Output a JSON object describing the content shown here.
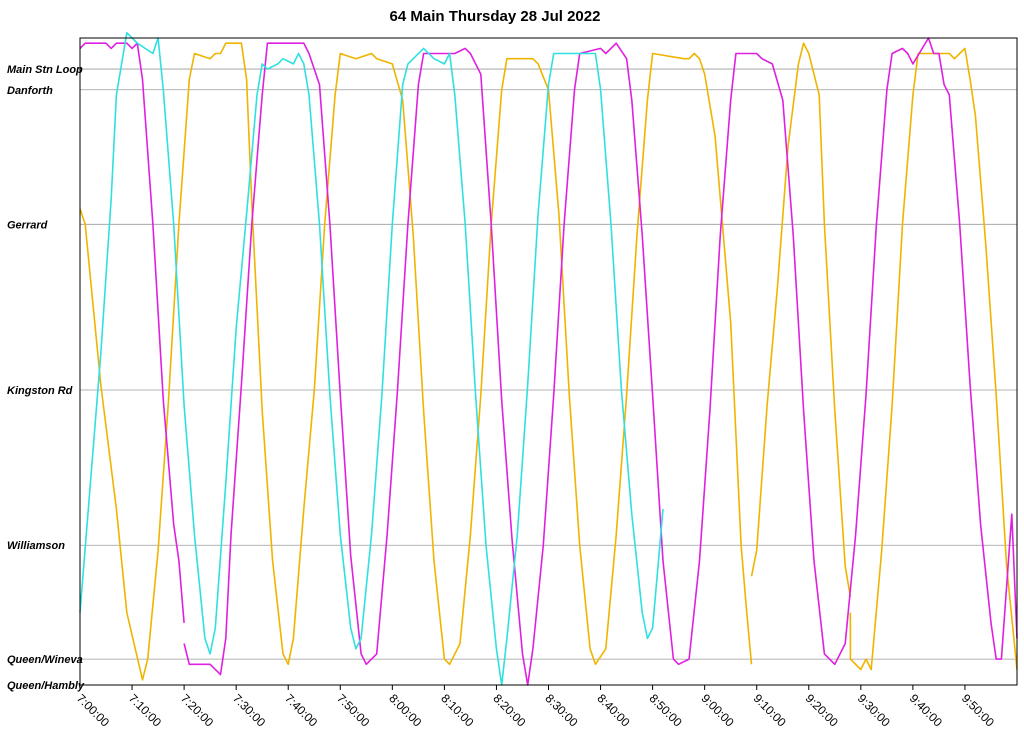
{
  "chart_data": {
    "type": "line",
    "title": "64 Main Thursday 28 Jul 2022",
    "xlabel": "",
    "ylabel": "",
    "x_ticks": [
      "7:00:00",
      "7:10:00",
      "7:20:00",
      "7:30:00",
      "7:40:00",
      "7:50:00",
      "8:00:00",
      "8:10:00",
      "8:20:00",
      "8:30:00",
      "8:40:00",
      "8:50:00",
      "9:00:00",
      "9:10:00",
      "9:20:00",
      "9:30:00",
      "9:40:00",
      "9:50:00"
    ],
    "xlim_minutes": [
      0,
      180
    ],
    "stops": [
      {
        "name": "Main Stn Loop",
        "km": 0.0
      },
      {
        "name": "Danforth",
        "km": 0.4
      },
      {
        "name": "Gerrard",
        "km": 3.0
      },
      {
        "name": "Kingston Rd",
        "km": 6.2
      },
      {
        "name": "Williamson",
        "km": 9.2
      },
      {
        "name": "Queen/Wineva",
        "km": 11.4
      },
      {
        "name": "Queen/Hambly",
        "km": 11.9
      }
    ],
    "ylim_km": [
      -0.6,
      11.9
    ],
    "series": [
      {
        "color": "#F0B400",
        "segments": [
          [
            [
              0,
              2.7
            ],
            [
              1,
              3.0
            ],
            [
              4,
              6.1
            ],
            [
              7,
              8.5
            ],
            [
              9,
              10.5
            ],
            [
              12,
              11.8
            ],
            [
              13,
              11.4
            ],
            [
              15,
              9.3
            ],
            [
              17,
              6.4
            ],
            [
              19,
              3.0
            ],
            [
              21,
              0.2
            ],
            [
              22,
              -0.3
            ],
            [
              25,
              -0.2
            ],
            [
              26,
              -0.3
            ],
            [
              27,
              -0.3
            ],
            [
              28,
              -0.5
            ],
            [
              31,
              -0.5
            ],
            [
              32,
              0.2
            ],
            [
              33,
              2.6
            ],
            [
              35,
              6.6
            ],
            [
              37,
              9.5
            ],
            [
              39,
              11.3
            ],
            [
              40,
              11.5
            ],
            [
              41,
              11.0
            ],
            [
              43,
              8.5
            ],
            [
              45,
              6.2
            ],
            [
              47,
              3.0
            ],
            [
              49,
              0.5
            ],
            [
              50,
              -0.3
            ],
            [
              53,
              -0.2
            ],
            [
              56,
              -0.3
            ],
            [
              57,
              -0.2
            ],
            [
              60,
              -0.1
            ],
            [
              62,
              0.6
            ],
            [
              64,
              3.2
            ],
            [
              66,
              6.6
            ],
            [
              68,
              9.5
            ],
            [
              70,
              11.4
            ],
            [
              71,
              11.5
            ],
            [
              73,
              11.1
            ],
            [
              75,
              9.0
            ],
            [
              77,
              6.3
            ],
            [
              79,
              3.0
            ],
            [
              81,
              0.4
            ],
            [
              82,
              -0.2
            ],
            [
              86,
              -0.2
            ],
            [
              87,
              -0.2
            ],
            [
              88,
              -0.1
            ],
            [
              90,
              0.4
            ],
            [
              92,
              2.8
            ],
            [
              94,
              6.3
            ],
            [
              96,
              9.2
            ],
            [
              98,
              11.2
            ],
            [
              99,
              11.5
            ],
            [
              101,
              11.2
            ],
            [
              103,
              9.0
            ],
            [
              105,
              6.3
            ],
            [
              107,
              3.2
            ],
            [
              109,
              0.6
            ],
            [
              110,
              -0.3
            ],
            [
              116,
              -0.2
            ],
            [
              117,
              -0.2
            ],
            [
              118,
              -0.3
            ],
            [
              119,
              -0.2
            ],
            [
              120,
              0.1
            ],
            [
              122,
              1.3
            ],
            [
              125,
              4.9
            ],
            [
              127,
              9.2
            ],
            [
              128,
              10.4
            ],
            [
              129,
              11.5
            ]
          ],
          [
            [
              129,
              9.8
            ],
            [
              130,
              9.3
            ],
            [
              132,
              6.5
            ],
            [
              134,
              4.2
            ],
            [
              136,
              1.5
            ],
            [
              138,
              -0.1
            ],
            [
              139,
              -0.5
            ],
            [
              140,
              -0.3
            ],
            [
              142,
              0.5
            ],
            [
              143,
              3.0
            ],
            [
              145,
              6.6
            ],
            [
              147,
              9.6
            ],
            [
              148,
              10.2
            ]
          ],
          [
            [
              148,
              10.5
            ],
            [
              148,
              11.4
            ],
            [
              150,
              11.6
            ],
            [
              151,
              11.4
            ],
            [
              152,
              11.6
            ],
            [
              154,
              9.3
            ],
            [
              156,
              6.5
            ],
            [
              158,
              3.0
            ],
            [
              160,
              0.5
            ],
            [
              161,
              -0.3
            ],
            [
              167,
              -0.3
            ],
            [
              168,
              -0.2
            ],
            [
              169,
              -0.3
            ],
            [
              170,
              -0.4
            ],
            [
              171,
              0.2
            ],
            [
              172,
              0.9
            ],
            [
              174,
              3.4
            ],
            [
              176,
              6.3
            ],
            [
              178,
              9.6
            ],
            [
              180,
              11.6
            ]
          ]
        ]
      },
      {
        "color": "#E020E0",
        "segments": [
          [
            [
              0,
              -0.4
            ],
            [
              1,
              -0.5
            ],
            [
              3,
              -0.5
            ],
            [
              5,
              -0.5
            ],
            [
              6,
              -0.4
            ],
            [
              7,
              -0.5
            ],
            [
              9,
              -0.5
            ],
            [
              10,
              -0.4
            ],
            [
              11,
              -0.5
            ],
            [
              12,
              0.2
            ],
            [
              14,
              3.0
            ],
            [
              16,
              6.4
            ],
            [
              18,
              8.8
            ],
            [
              19,
              9.5
            ],
            [
              20,
              10.7
            ]
          ],
          [
            [
              20,
              11.1
            ],
            [
              21,
              11.5
            ],
            [
              25,
              11.5
            ],
            [
              27,
              11.7
            ],
            [
              28,
              11.0
            ],
            [
              29,
              9.0
            ],
            [
              31,
              6.1
            ],
            [
              33,
              3.0
            ],
            [
              35,
              0.5
            ],
            [
              36,
              -0.5
            ],
            [
              40,
              -0.5
            ],
            [
              43,
              -0.5
            ],
            [
              44,
              -0.3
            ],
            [
              46,
              0.3
            ],
            [
              48,
              3.0
            ],
            [
              50,
              6.3
            ],
            [
              52,
              9.4
            ],
            [
              54,
              11.3
            ],
            [
              55,
              11.5
            ],
            [
              57,
              11.3
            ],
            [
              59,
              9.0
            ],
            [
              61,
              6.2
            ],
            [
              63,
              3.0
            ],
            [
              65,
              0.3
            ],
            [
              66,
              -0.3
            ],
            [
              70,
              -0.3
            ],
            [
              72,
              -0.3
            ],
            [
              74,
              -0.4
            ],
            [
              75,
              -0.3
            ],
            [
              77,
              0.1
            ],
            [
              79,
              3.0
            ],
            [
              81,
              6.4
            ],
            [
              83,
              9.1
            ],
            [
              85,
              11.3
            ],
            [
              86,
              11.9
            ],
            [
              87,
              11.2
            ],
            [
              89,
              9.2
            ],
            [
              91,
              6.3
            ],
            [
              93,
              3.0
            ],
            [
              95,
              0.4
            ],
            [
              96,
              -0.3
            ],
            [
              100,
              -0.4
            ],
            [
              101,
              -0.3
            ],
            [
              103,
              -0.5
            ],
            [
              105,
              -0.2
            ],
            [
              106,
              0.6
            ],
            [
              108,
              3.2
            ],
            [
              110,
              6.3
            ],
            [
              112,
              9.5
            ],
            [
              114,
              11.4
            ],
            [
              115,
              11.5
            ],
            [
              117,
              11.4
            ],
            [
              119,
              9.5
            ],
            [
              121,
              6.6
            ],
            [
              123,
              3.2
            ],
            [
              125,
              0.6
            ],
            [
              126,
              -0.3
            ],
            [
              128,
              -0.3
            ],
            [
              129,
              -0.3
            ],
            [
              130,
              -0.3
            ],
            [
              131,
              -0.2
            ],
            [
              133,
              -0.1
            ],
            [
              135,
              0.6
            ],
            [
              137,
              3.2
            ],
            [
              139,
              6.6
            ],
            [
              141,
              9.5
            ],
            [
              143,
              11.3
            ],
            [
              145,
              11.5
            ],
            [
              147,
              11.1
            ],
            [
              149,
              9.0
            ],
            [
              151,
              6.3
            ],
            [
              153,
              3.0
            ],
            [
              155,
              0.4
            ],
            [
              156,
              -0.3
            ],
            [
              158,
              -0.4
            ],
            [
              159,
              -0.3
            ],
            [
              160,
              -0.1
            ],
            [
              163,
              -0.6
            ],
            [
              164,
              -0.3
            ],
            [
              165,
              -0.3
            ],
            [
              166,
              0.3
            ],
            [
              167,
              0.5
            ],
            [
              169,
              3.0
            ],
            [
              171,
              6.1
            ],
            [
              173,
              8.8
            ],
            [
              175,
              10.7
            ],
            [
              176,
              11.4
            ],
            [
              177,
              11.4
            ],
            [
              179,
              8.6
            ],
            [
              180,
              11.0
            ]
          ]
        ]
      },
      {
        "color": "#30E0E0",
        "segments": [
          [
            [
              0,
              10.5
            ],
            [
              2,
              8.0
            ],
            [
              4,
              5.5
            ],
            [
              6,
              2.5
            ],
            [
              7,
              0.5
            ],
            [
              8,
              -0.1
            ],
            [
              9,
              -0.7
            ],
            [
              10,
              -0.6
            ],
            [
              11,
              -0.5
            ],
            [
              14,
              -0.3
            ],
            [
              15,
              -0.6
            ],
            [
              16,
              0.4
            ],
            [
              18,
              3.0
            ],
            [
              20,
              6.5
            ],
            [
              22,
              9.0
            ],
            [
              24,
              11.0
            ],
            [
              25,
              11.3
            ],
            [
              26,
              10.8
            ],
            [
              28,
              8.0
            ],
            [
              30,
              5.0
            ],
            [
              32,
              2.8
            ],
            [
              34,
              0.5
            ],
            [
              35,
              -0.1
            ],
            [
              36,
              0.0
            ],
            [
              38,
              -0.1
            ],
            [
              39,
              -0.2
            ],
            [
              41,
              -0.1
            ],
            [
              42,
              -0.3
            ],
            [
              43,
              -0.1
            ],
            [
              44,
              0.5
            ],
            [
              46,
              3.0
            ],
            [
              48,
              6.3
            ],
            [
              50,
              9.0
            ],
            [
              52,
              10.8
            ],
            [
              53,
              11.2
            ],
            [
              54,
              11.0
            ],
            [
              56,
              9.0
            ],
            [
              58,
              6.3
            ],
            [
              60,
              3.0
            ],
            [
              62,
              0.3
            ],
            [
              63,
              -0.1
            ],
            [
              66,
              -0.4
            ],
            [
              68,
              -0.2
            ],
            [
              70,
              -0.1
            ],
            [
              71,
              -0.3
            ],
            [
              72,
              0.5
            ],
            [
              74,
              3.0
            ],
            [
              76,
              6.3
            ],
            [
              78,
              9.2
            ],
            [
              80,
              11.2
            ],
            [
              81,
              11.9
            ],
            [
              82,
              11.0
            ],
            [
              84,
              9.0
            ],
            [
              86,
              6.1
            ],
            [
              88,
              2.8
            ],
            [
              90,
              0.3
            ],
            [
              91,
              -0.3
            ],
            [
              95,
              -0.3
            ],
            [
              97,
              -0.3
            ],
            [
              98,
              -0.3
            ],
            [
              99,
              -0.3
            ],
            [
              100,
              0.4
            ],
            [
              102,
              3.0
            ],
            [
              104,
              6.2
            ],
            [
              106,
              8.6
            ],
            [
              108,
              10.5
            ],
            [
              109,
              11.0
            ],
            [
              110,
              10.8
            ],
            [
              112,
              8.5
            ]
          ]
        ]
      }
    ]
  }
}
